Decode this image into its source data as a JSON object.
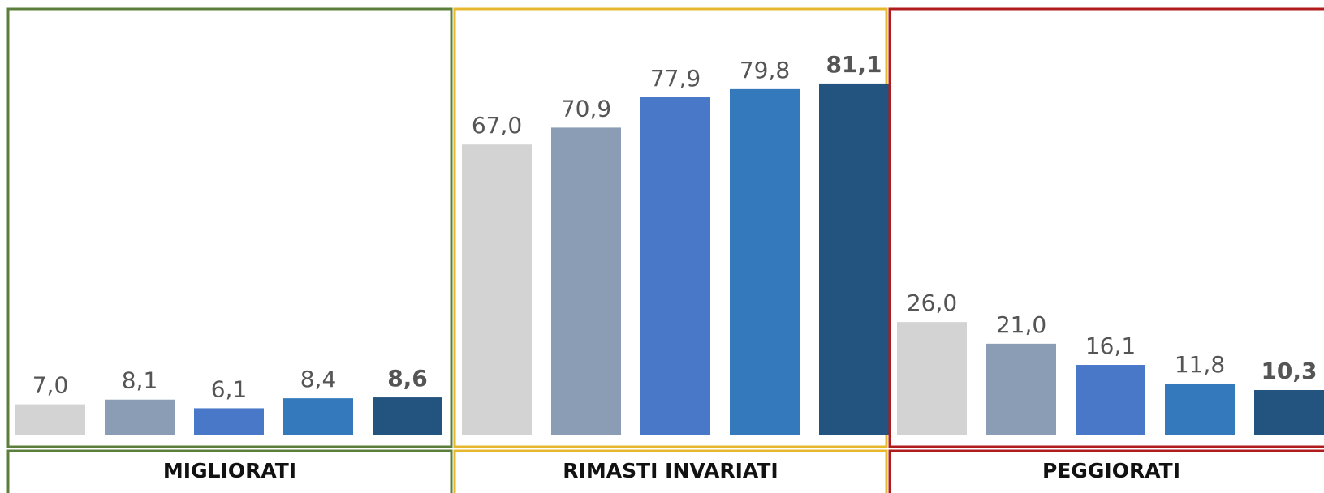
{
  "chart_data": {
    "type": "bar",
    "categories": [
      "MIGLIORATI",
      "RIMASTI INVARIATI",
      "PEGGIORATI"
    ],
    "category_colors": [
      "#5b7f3a",
      "#e6b830",
      "#b01c1c"
    ],
    "ylim": [
      0,
      100
    ],
    "series": [
      {
        "color": "#d4d3d4",
        "values": [
          7.0,
          67.0,
          26.0
        ],
        "value_labels": [
          "7,0",
          "67,0",
          "26,0"
        ]
      },
      {
        "color": "#8a9db5",
        "values": [
          8.1,
          70.9,
          21.0
        ],
        "value_labels": [
          "8,1",
          "70,9",
          "21,0"
        ]
      },
      {
        "color": "#4a78c8",
        "values": [
          6.1,
          77.9,
          16.1
        ],
        "value_labels": [
          "6,1",
          "77,9",
          "16,1"
        ]
      },
      {
        "color": "#3479bb",
        "values": [
          8.4,
          79.8,
          11.8
        ],
        "value_labels": [
          "8,4",
          "79,8",
          "11,8"
        ]
      },
      {
        "color": "#22547f",
        "values": [
          8.6,
          81.1,
          10.3
        ],
        "value_labels": [
          "8,6",
          "81,1",
          "10,3"
        ],
        "font_weight": "bold"
      }
    ]
  }
}
